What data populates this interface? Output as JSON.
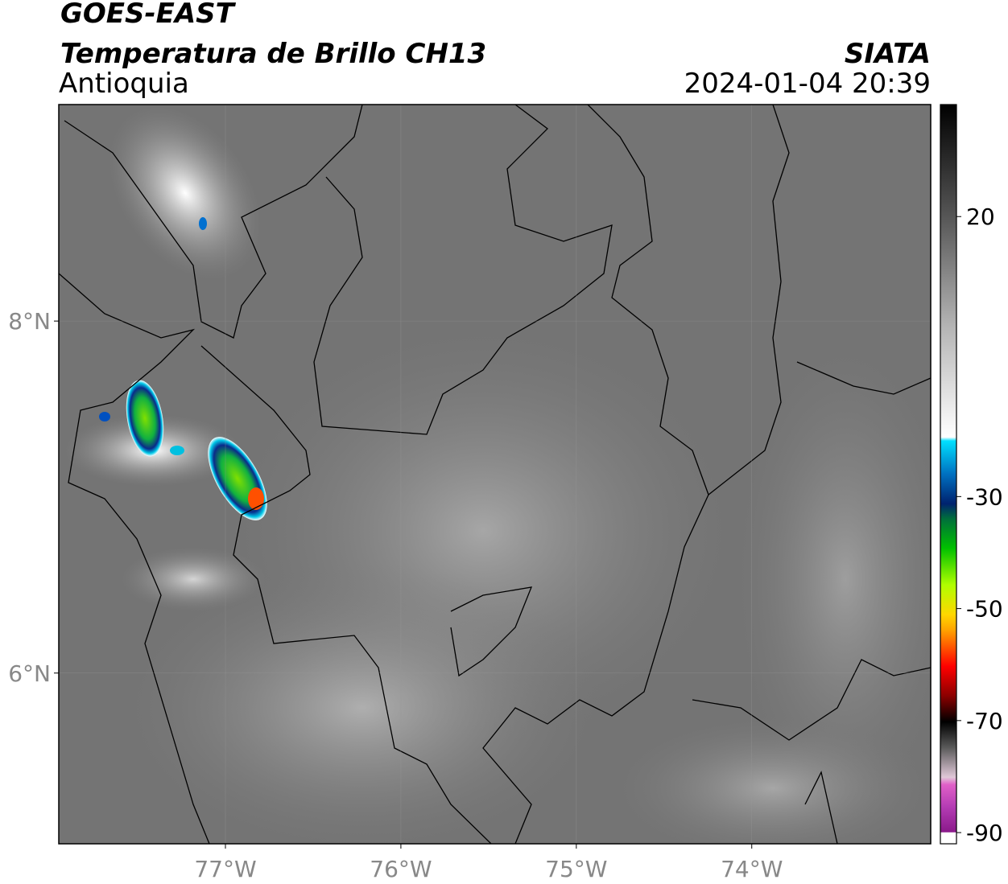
{
  "header": {
    "title": "GOES-EAST",
    "subtitle": "Temperatura de Brillo CH13",
    "region": "Antioquia",
    "source": "SIATA",
    "datetime": "2024-01-04 20:39"
  },
  "map": {
    "lonlim": [
      -77.95,
      -72.98
    ],
    "latlim": [
      5.03,
      9.23
    ],
    "lon_ticks": [
      {
        "value": -77,
        "label": "77°W"
      },
      {
        "value": -76,
        "label": "76°W"
      },
      {
        "value": -75,
        "label": "75°W"
      },
      {
        "value": -74,
        "label": "74°W"
      }
    ],
    "lat_ticks": [
      {
        "value": 8,
        "label": "8°N"
      },
      {
        "value": 6,
        "label": "6°N"
      }
    ]
  },
  "colorbar": {
    "lim": [
      -92,
      40
    ],
    "ticks": [
      20,
      -30,
      -50,
      -70,
      -90
    ]
  }
}
